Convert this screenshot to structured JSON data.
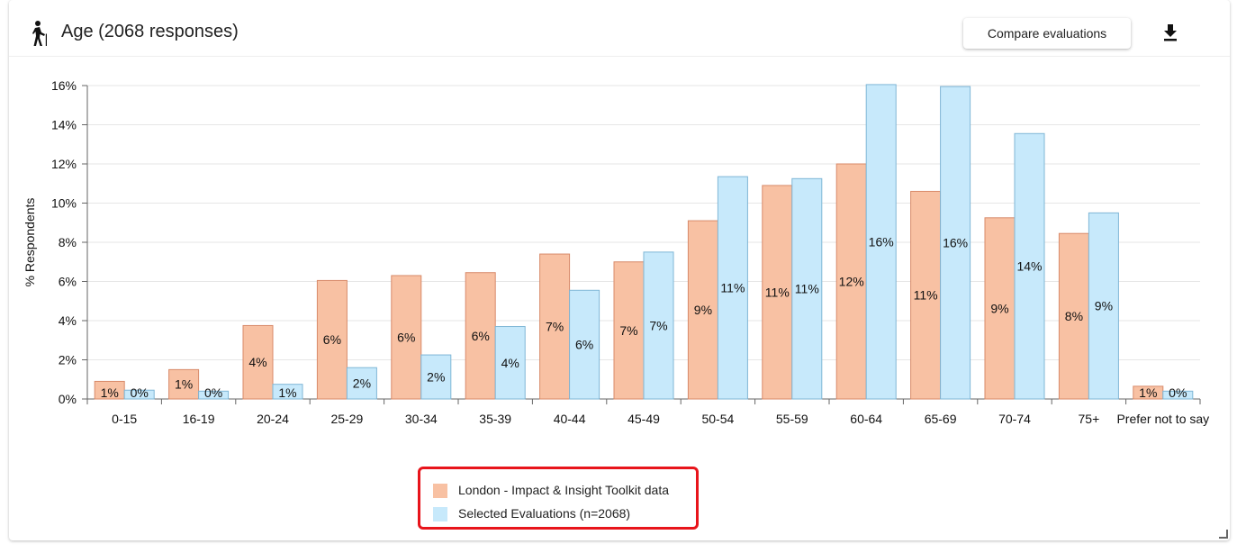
{
  "header": {
    "title": "Age (2068 responses)",
    "title_icon": "person-walking-cane-icon",
    "compare_label": "Compare evaluations",
    "download_icon": "download-icon"
  },
  "colors": {
    "london": "#f8c1a3",
    "london_stroke": "#d88a6a",
    "selected": "#c7e9fb",
    "selected_stroke": "#7fb6d6",
    "legend_border": "#e8141b"
  },
  "chart_data": {
    "type": "bar",
    "ylabel": "% Respondents",
    "xlabel": "",
    "ylim": [
      0,
      16
    ],
    "yticks": [
      "0%",
      "2%",
      "4%",
      "6%",
      "8%",
      "10%",
      "12%",
      "14%",
      "16%"
    ],
    "grid": true,
    "legend_position": "bottom-center",
    "categories": [
      "0-15",
      "16-19",
      "20-24",
      "25-29",
      "30-34",
      "35-39",
      "40-44",
      "45-49",
      "50-54",
      "55-59",
      "60-64",
      "65-69",
      "70-74",
      "75+",
      "Prefer not to say"
    ],
    "series": [
      {
        "name": "London - Impact & Insight Toolkit data",
        "values": [
          0.9,
          1.5,
          3.75,
          6.05,
          6.3,
          6.45,
          7.4,
          7.0,
          9.1,
          10.9,
          12.0,
          10.6,
          9.25,
          8.45,
          0.65
        ],
        "labels": [
          "1%",
          "1%",
          "4%",
          "6%",
          "6%",
          "6%",
          "7%",
          "7%",
          "9%",
          "11%",
          "12%",
          "11%",
          "9%",
          "8%",
          "1%"
        ]
      },
      {
        "name": "Selected Evaluations (n=2068)",
        "values": [
          0.45,
          0.4,
          0.75,
          1.6,
          2.25,
          3.7,
          5.55,
          7.5,
          11.35,
          11.25,
          16.05,
          15.95,
          13.55,
          9.5,
          0.4
        ],
        "labels": [
          "0%",
          "0%",
          "1%",
          "2%",
          "2%",
          "4%",
          "6%",
          "7%",
          "11%",
          "11%",
          "16%",
          "16%",
          "14%",
          "9%",
          "0%"
        ]
      }
    ]
  }
}
